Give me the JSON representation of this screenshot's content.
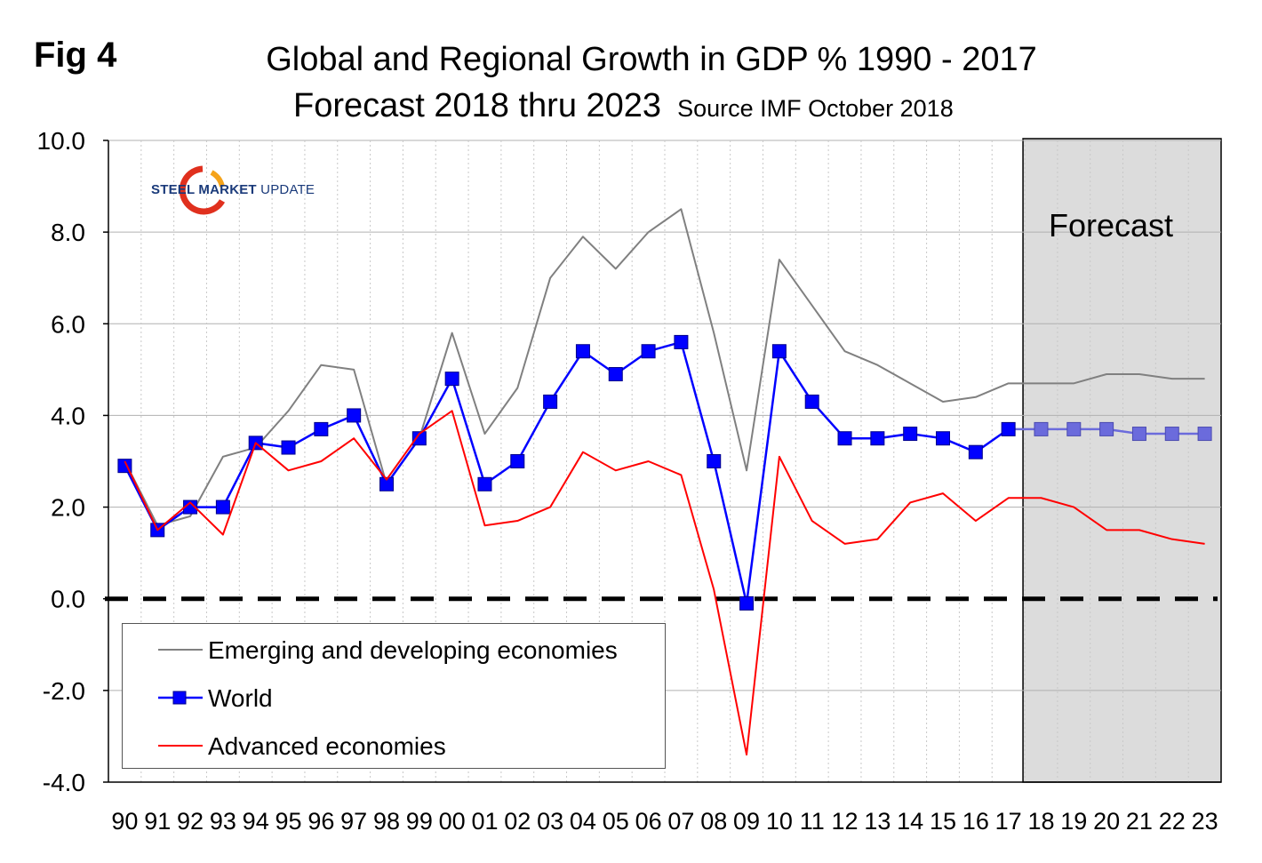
{
  "figure": {
    "fig_label": "Fig 4",
    "title_line1": "Global and Regional Growth in GDP % 1990 - 2017",
    "title_line2": "Forecast 2018 thru 2023",
    "source": "Source IMF October 2018",
    "forecast_label": "Forecast",
    "logo_text_bold": "STEEL MARKET",
    "logo_text_light": "UPDATE"
  },
  "colors": {
    "emerging": "#808080",
    "world": "#0000ff",
    "world_forecast": "#6b6bdc",
    "advanced": "#ff0000",
    "forecast_shade": "#dcdcdc",
    "gridline": "#b0b0b0",
    "zero_line": "#000000",
    "logo_arc": "#e0301e",
    "logo_arc_accent": "#f5a31a"
  },
  "chart_data": {
    "type": "line",
    "categories": [
      "90",
      "91",
      "92",
      "93",
      "94",
      "95",
      "96",
      "97",
      "98",
      "99",
      "00",
      "01",
      "02",
      "03",
      "04",
      "05",
      "06",
      "07",
      "08",
      "09",
      "10",
      "11",
      "12",
      "13",
      "14",
      "15",
      "16",
      "17",
      "18",
      "19",
      "20",
      "21",
      "22",
      "23"
    ],
    "ylim": [
      -4.0,
      10.0
    ],
    "yticks": [
      10.0,
      8.0,
      6.0,
      4.0,
      2.0,
      0.0,
      -2.0,
      -4.0
    ],
    "ytick_labels": [
      "10.0",
      "8.0",
      "6.0",
      "4.0",
      "2.0",
      "0.0",
      "-2.0",
      "-4.0"
    ],
    "grid": "horizontal solid, vertical dotted",
    "zero_line": "dashed black",
    "forecast_region": {
      "start": "18",
      "end": "23"
    },
    "legend_position": "bottom-left",
    "series": [
      {
        "name": "Emerging and developing economies",
        "key": "emerging",
        "marker": "none",
        "values": [
          3.0,
          1.6,
          1.8,
          3.1,
          3.3,
          4.1,
          5.1,
          5.0,
          2.5,
          3.5,
          5.8,
          3.6,
          4.6,
          7.0,
          7.9,
          7.2,
          8.0,
          8.5,
          5.8,
          2.8,
          7.4,
          6.4,
          5.4,
          5.1,
          4.7,
          4.3,
          4.4,
          4.7,
          4.7,
          4.7,
          4.9,
          4.9,
          4.8,
          4.8
        ]
      },
      {
        "name": "World",
        "key": "world",
        "marker": "square",
        "values": [
          2.9,
          1.5,
          2.0,
          2.0,
          3.4,
          3.3,
          3.7,
          4.0,
          2.5,
          3.5,
          4.8,
          2.5,
          3.0,
          4.3,
          5.4,
          4.9,
          5.4,
          5.6,
          3.0,
          -0.1,
          5.4,
          4.3,
          3.5,
          3.5,
          3.6,
          3.5,
          3.2,
          3.7,
          3.7,
          3.7,
          3.7,
          3.6,
          3.6,
          3.6
        ]
      },
      {
        "name": "Advanced economies",
        "key": "advanced",
        "marker": "none",
        "values": [
          3.0,
          1.5,
          2.1,
          1.4,
          3.4,
          2.8,
          3.0,
          3.5,
          2.6,
          3.6,
          4.1,
          1.6,
          1.7,
          2.0,
          3.2,
          2.8,
          3.0,
          2.7,
          0.2,
          -3.4,
          3.1,
          1.7,
          1.2,
          1.3,
          2.1,
          2.3,
          1.7,
          2.2,
          2.2,
          2.0,
          1.5,
          1.5,
          1.3,
          1.2
        ]
      }
    ]
  }
}
